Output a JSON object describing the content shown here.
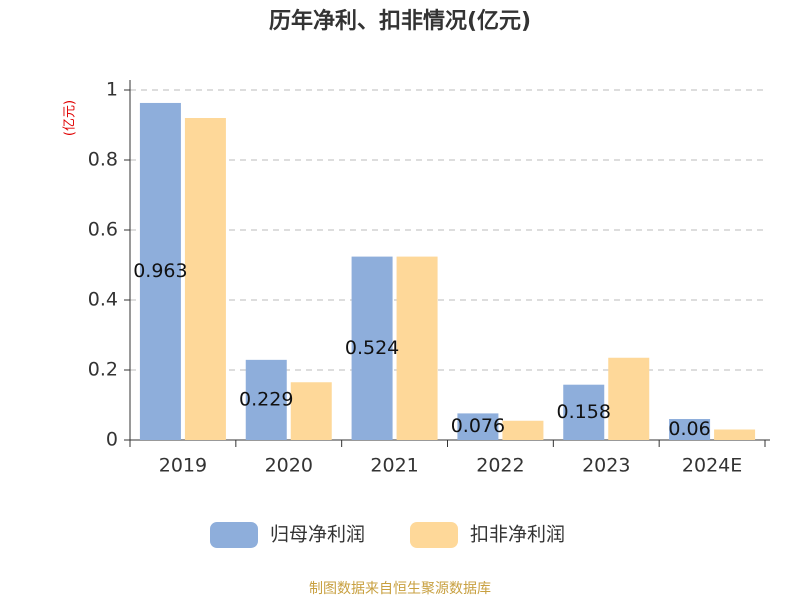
{
  "chart_data": {
    "type": "bar",
    "title": "历年净利、扣非情况(亿元)",
    "y_label": "(亿元)",
    "categories": [
      "2019",
      "2020",
      "2021",
      "2022",
      "2023",
      "2024E"
    ],
    "series": [
      {
        "name": "归母净利润",
        "color": "#8eaedb",
        "values": [
          0.963,
          0.229,
          0.524,
          0.076,
          0.158,
          0.06
        ]
      },
      {
        "name": "扣非净利润",
        "color": "#fed899",
        "values": [
          0.92,
          0.165,
          0.524,
          0.055,
          0.235,
          0.03
        ]
      }
    ],
    "data_labels_series": 0,
    "ylim": [
      0,
      1
    ],
    "yticks": [
      0,
      0.2,
      0.4,
      0.6,
      0.8,
      1
    ],
    "grid": true,
    "source": "制图数据来自恒生聚源数据库"
  }
}
